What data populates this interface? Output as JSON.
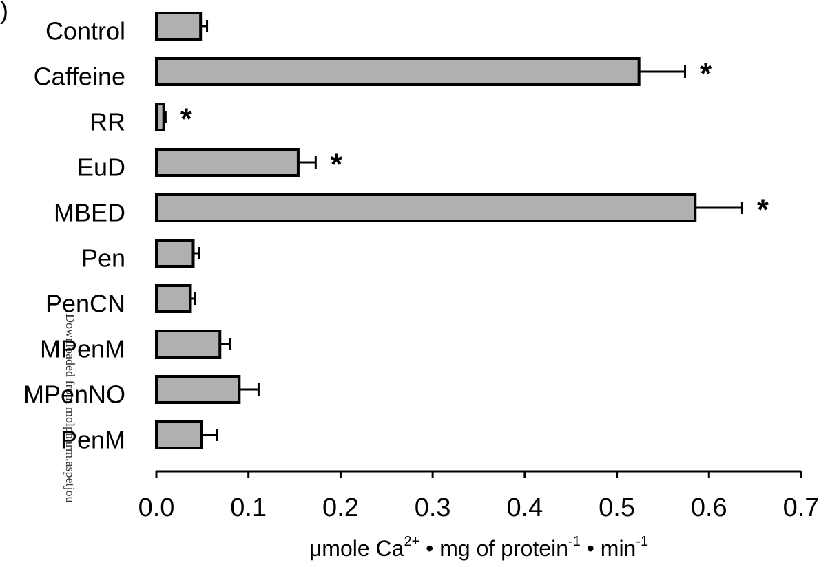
{
  "chart_data": {
    "type": "bar",
    "orientation": "horizontal",
    "panel_label": ")",
    "categories": [
      "Control",
      "Caffeine",
      "RR",
      "EuD",
      "MBED",
      "Pen",
      "PenCN",
      "MPenM",
      "MPenNO",
      "PenM"
    ],
    "values": [
      0.048,
      0.524,
      0.008,
      0.154,
      0.585,
      0.04,
      0.037,
      0.069,
      0.09,
      0.049
    ],
    "errors": [
      0.007,
      0.05,
      0.002,
      0.019,
      0.051,
      0.006,
      0.005,
      0.011,
      0.021,
      0.017
    ],
    "significant": [
      false,
      true,
      true,
      true,
      true,
      false,
      false,
      false,
      false,
      false
    ],
    "significance_marker": "*",
    "color": "#b0b0b0",
    "xlim": [
      0,
      0.7
    ],
    "xticks": [
      {
        "value": 0,
        "label": "0.0"
      },
      0.1,
      0.2,
      0.3,
      0.4,
      0.5,
      0.6,
      0.7
    ],
    "xlabel": [
      "μmole Ca",
      "2+",
      " • mg of protein",
      "-1",
      " • min",
      "-1"
    ],
    "watermark": "Downloaded from molpharm.aspetjou",
    "grid": false
  }
}
